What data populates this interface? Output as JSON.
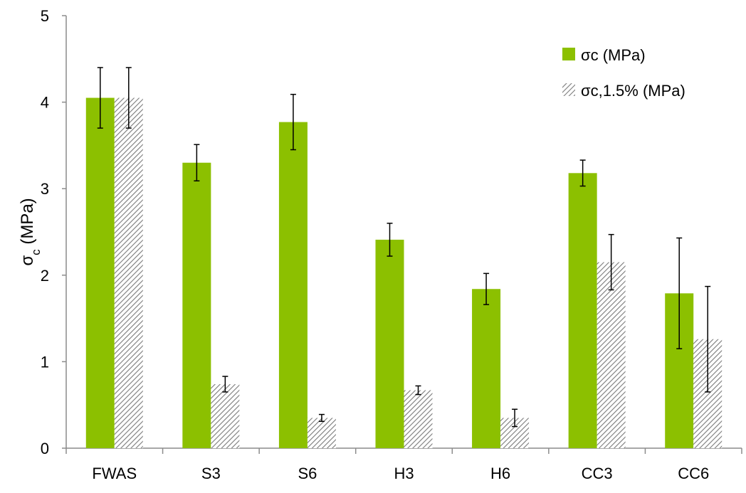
{
  "chart_data": {
    "type": "bar",
    "title": "",
    "xlabel": "",
    "ylabel": "σ",
    "ylabel_sub": "c",
    "ylabel_unit": " (MPa)",
    "categories": [
      "FWAS",
      "S3",
      "S6",
      "H3",
      "H6",
      "CC3",
      "CC6"
    ],
    "ylim": [
      0,
      5
    ],
    "yticks": [
      "0",
      "1",
      "2",
      "3",
      "4",
      "5"
    ],
    "grid": false,
    "legend_position": "top-right",
    "series": [
      {
        "name": "σc (MPa)",
        "pattern": "solid",
        "color": "#8cc000",
        "values": [
          4.05,
          3.3,
          3.77,
          2.41,
          1.84,
          3.18,
          1.79
        ],
        "error": [
          0.35,
          0.21,
          0.32,
          0.19,
          0.18,
          0.15,
          0.64
        ]
      },
      {
        "name": "σc,1.5% (MPa)",
        "pattern": "hatched",
        "color": "#8a8a8a",
        "values": [
          4.05,
          0.74,
          0.35,
          0.67,
          0.35,
          2.15,
          1.26
        ],
        "error": [
          0.35,
          0.09,
          0.04,
          0.05,
          0.1,
          0.32,
          0.61
        ]
      }
    ]
  }
}
